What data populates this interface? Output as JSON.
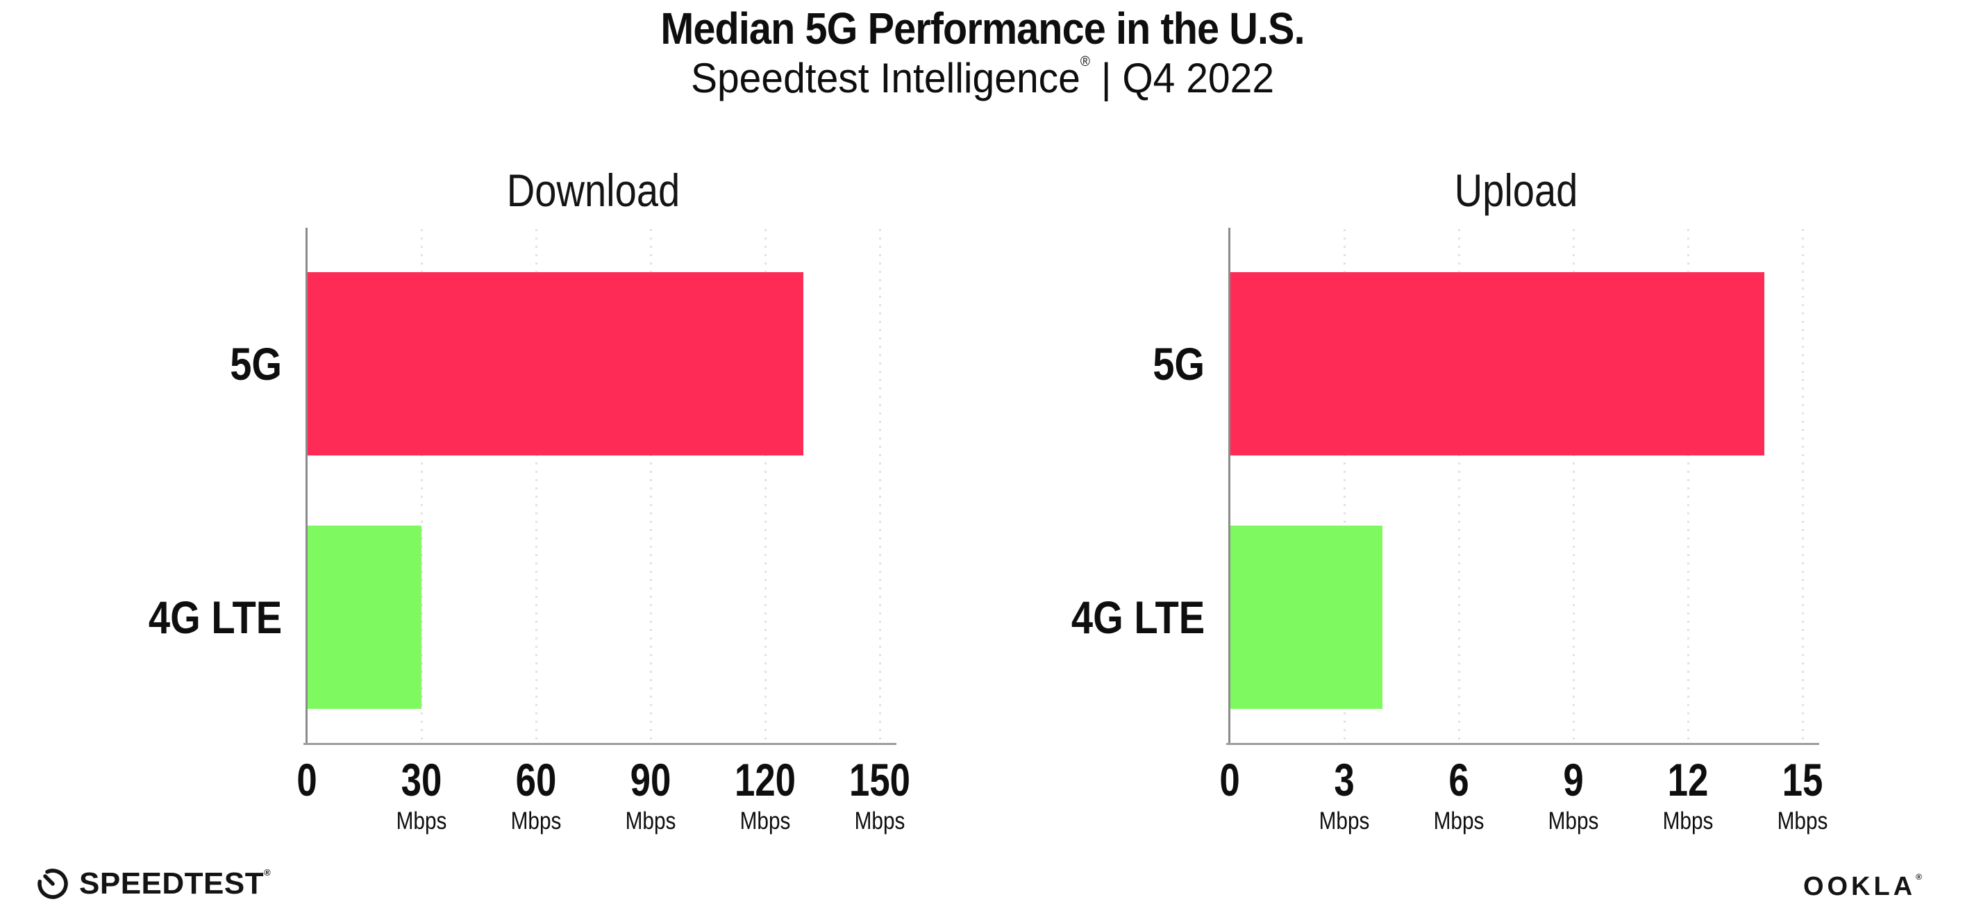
{
  "header": {
    "title": "Median 5G Performance in the U.S.",
    "subtitle_brand": "Speedtest Intelligence",
    "subtitle_reg": "®",
    "subtitle_rest": " | Q4 2022"
  },
  "colors": {
    "bar_5g": "#ff2b57",
    "bar_4g": "#7efa60",
    "gridline": "#e0e1eb",
    "x_axis": "#9d9d9d",
    "y_axis": "#8b8b8b",
    "text": "#0e0e0e"
  },
  "chart_data": [
    {
      "type": "bar",
      "orientation": "horizontal",
      "title": "Download",
      "categories": [
        "5G",
        "4G LTE"
      ],
      "values": [
        130,
        30
      ],
      "unit": "Mbps",
      "xlabel": "",
      "ylabel": "",
      "xlim": [
        0,
        150
      ],
      "xticks": [
        0,
        30,
        60,
        90,
        120,
        150
      ],
      "grid": "vertical-dotted",
      "legend": "none"
    },
    {
      "type": "bar",
      "orientation": "horizontal",
      "title": "Upload",
      "categories": [
        "5G",
        "4G LTE"
      ],
      "values": [
        14,
        4
      ],
      "unit": "Mbps",
      "xlabel": "",
      "ylabel": "",
      "xlim": [
        0,
        15
      ],
      "xticks": [
        0,
        3,
        6,
        9,
        12,
        15
      ],
      "grid": "vertical-dotted",
      "legend": "none"
    }
  ],
  "footer": {
    "speedtest_label": "SPEEDTEST",
    "speedtest_reg": "®",
    "ookla_label": "OOKLA",
    "ookla_reg": "®"
  }
}
